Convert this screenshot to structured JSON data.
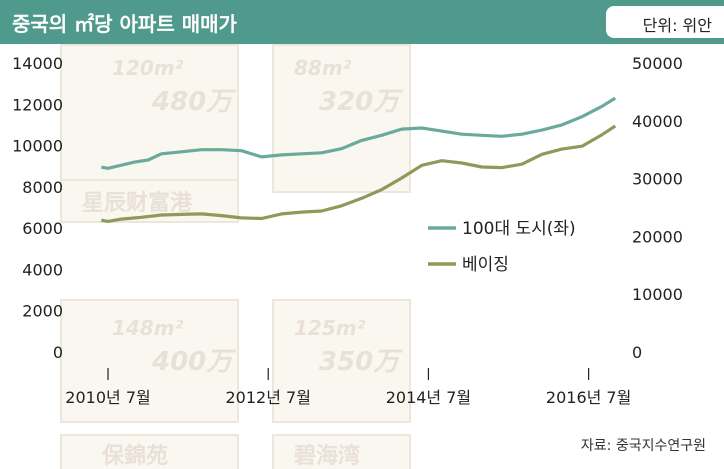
{
  "title": "중국의 ㎡당 아파트 매매가",
  "unit": "단위: 위안",
  "source": "자료: 중국지수연구원",
  "colors": {
    "header": "#4f9a8c",
    "series_city": "#6aaa9c",
    "series_beijing": "#8f9a5a"
  },
  "background_text": [
    "120m²",
    "480万",
    "88m²",
    "320万",
    "星辰财富港",
    "148m²",
    "400万",
    "125m²",
    "350万",
    "保錦苑",
    "碧海湾"
  ],
  "chart_data": {
    "type": "line",
    "x_ticks": [
      "2010년 7월",
      "2012년 7월",
      "2014년 7월",
      "2016년 7월"
    ],
    "x_range": [
      "2010-04",
      "2016-12"
    ],
    "y_left": {
      "ticks": [
        0,
        2000,
        4000,
        6000,
        8000,
        10000,
        12000,
        14000
      ],
      "range": [
        0,
        14000
      ]
    },
    "y_right": {
      "ticks": [
        0,
        10000,
        20000,
        30000,
        40000,
        50000
      ],
      "range": [
        0,
        50000
      ]
    },
    "grid": false,
    "legend_position": "center-right",
    "series": [
      {
        "name": "100대 도시(좌)",
        "axis": "left",
        "points": [
          [
            "2010-06",
            8950
          ],
          [
            "2010-07",
            8900
          ],
          [
            "2010-09",
            9050
          ],
          [
            "2010-11",
            9200
          ],
          [
            "2011-01",
            9300
          ],
          [
            "2011-03",
            9600
          ],
          [
            "2011-06",
            9700
          ],
          [
            "2011-09",
            9800
          ],
          [
            "2011-12",
            9800
          ],
          [
            "2012-03",
            9750
          ],
          [
            "2012-06",
            9450
          ],
          [
            "2012-09",
            9550
          ],
          [
            "2012-12",
            9600
          ],
          [
            "2013-03",
            9650
          ],
          [
            "2013-06",
            9850
          ],
          [
            "2013-09",
            10250
          ],
          [
            "2013-12",
            10500
          ],
          [
            "2014-03",
            10800
          ],
          [
            "2014-06",
            10850
          ],
          [
            "2014-09",
            10700
          ],
          [
            "2014-12",
            10550
          ],
          [
            "2015-03",
            10500
          ],
          [
            "2015-06",
            10450
          ],
          [
            "2015-09",
            10550
          ],
          [
            "2015-12",
            10750
          ],
          [
            "2016-03",
            11000
          ],
          [
            "2016-06",
            11400
          ],
          [
            "2016-09",
            11900
          ],
          [
            "2016-11",
            12300
          ]
        ]
      },
      {
        "name": "베이징",
        "axis": "right",
        "points": [
          [
            "2010-06",
            22800
          ],
          [
            "2010-07",
            22600
          ],
          [
            "2010-09",
            23000
          ],
          [
            "2010-12",
            23300
          ],
          [
            "2011-03",
            23700
          ],
          [
            "2011-06",
            23800
          ],
          [
            "2011-09",
            23900
          ],
          [
            "2011-12",
            23600
          ],
          [
            "2012-03",
            23200
          ],
          [
            "2012-06",
            23100
          ],
          [
            "2012-09",
            23900
          ],
          [
            "2012-12",
            24200
          ],
          [
            "2013-03",
            24400
          ],
          [
            "2013-06",
            25300
          ],
          [
            "2013-09",
            26600
          ],
          [
            "2013-12",
            28100
          ],
          [
            "2014-03",
            30100
          ],
          [
            "2014-06",
            32300
          ],
          [
            "2014-09",
            33100
          ],
          [
            "2014-12",
            32700
          ],
          [
            "2015-03",
            32000
          ],
          [
            "2015-06",
            31900
          ],
          [
            "2015-09",
            32500
          ],
          [
            "2015-12",
            34200
          ],
          [
            "2016-03",
            35100
          ],
          [
            "2016-06",
            35600
          ],
          [
            "2016-09",
            37600
          ],
          [
            "2016-11",
            39100
          ]
        ]
      }
    ]
  }
}
